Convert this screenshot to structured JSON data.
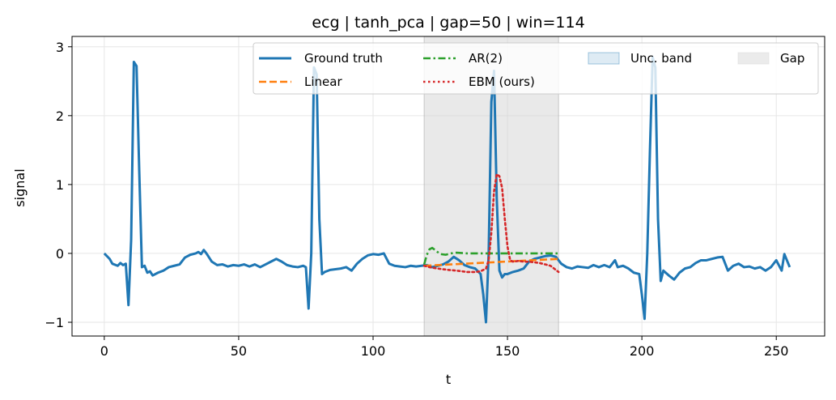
{
  "chart_data": {
    "type": "line",
    "title": "ecg | tanh_pca | gap=50 | win=114",
    "xlabel": "t",
    "ylabel": "signal",
    "xlim": [
      -12,
      268
    ],
    "ylim": [
      -1.2,
      3.15
    ],
    "xticks": [
      0,
      50,
      100,
      150,
      200,
      250
    ],
    "yticks": [
      -1,
      0,
      1,
      2,
      3
    ],
    "grid": true,
    "legend_placement": "top-right",
    "gap_region": {
      "start": 119,
      "end": 169,
      "color": "#d3d3d3",
      "label": "Gap"
    },
    "uncertainty_band": {
      "label": "Unc. band",
      "color": "#1f77b4"
    },
    "series": [
      {
        "name": "Ground truth",
        "color": "#1f77b4",
        "style": "solid",
        "points": [
          [
            0,
            0
          ],
          [
            2,
            -0.08
          ],
          [
            3,
            -0.15
          ],
          [
            5,
            -0.18
          ],
          [
            6,
            -0.14
          ],
          [
            7,
            -0.17
          ],
          [
            8,
            -0.15
          ],
          [
            9,
            -0.75
          ],
          [
            10,
            0.2
          ],
          [
            11,
            2.78
          ],
          [
            12,
            2.72
          ],
          [
            13,
            1.2
          ],
          [
            14,
            -0.2
          ],
          [
            15,
            -0.18
          ],
          [
            16,
            -0.28
          ],
          [
            17,
            -0.26
          ],
          [
            18,
            -0.32
          ],
          [
            20,
            -0.28
          ],
          [
            22,
            -0.25
          ],
          [
            24,
            -0.2
          ],
          [
            26,
            -0.18
          ],
          [
            28,
            -0.16
          ],
          [
            30,
            -0.06
          ],
          [
            32,
            -0.02
          ],
          [
            34,
            0.0
          ],
          [
            35,
            0.02
          ],
          [
            36,
            -0.01
          ],
          [
            37,
            0.05
          ],
          [
            38,
            0.0
          ],
          [
            40,
            -0.12
          ],
          [
            42,
            -0.17
          ],
          [
            44,
            -0.16
          ],
          [
            46,
            -0.19
          ],
          [
            48,
            -0.17
          ],
          [
            50,
            -0.18
          ],
          [
            52,
            -0.16
          ],
          [
            54,
            -0.19
          ],
          [
            56,
            -0.16
          ],
          [
            58,
            -0.2
          ],
          [
            60,
            -0.16
          ],
          [
            62,
            -0.12
          ],
          [
            64,
            -0.08
          ],
          [
            66,
            -0.12
          ],
          [
            68,
            -0.17
          ],
          [
            70,
            -0.19
          ],
          [
            72,
            -0.2
          ],
          [
            74,
            -0.18
          ],
          [
            75,
            -0.2
          ],
          [
            76,
            -0.8
          ],
          [
            77,
            0.0
          ],
          [
            78,
            2.7
          ],
          [
            79,
            2.6
          ],
          [
            80,
            0.5
          ],
          [
            81,
            -0.3
          ],
          [
            82,
            -0.27
          ],
          [
            84,
            -0.24
          ],
          [
            86,
            -0.23
          ],
          [
            88,
            -0.22
          ],
          [
            90,
            -0.2
          ],
          [
            92,
            -0.25
          ],
          [
            94,
            -0.15
          ],
          [
            96,
            -0.08
          ],
          [
            98,
            -0.03
          ],
          [
            100,
            -0.01
          ],
          [
            102,
            -0.02
          ],
          [
            104,
            0.0
          ],
          [
            106,
            -0.15
          ],
          [
            108,
            -0.18
          ],
          [
            110,
            -0.19
          ],
          [
            112,
            -0.2
          ],
          [
            114,
            -0.18
          ],
          [
            116,
            -0.19
          ],
          [
            118,
            -0.18
          ],
          [
            120,
            -0.17
          ],
          [
            122,
            -0.2
          ],
          [
            124,
            -0.18
          ],
          [
            126,
            -0.16
          ],
          [
            128,
            -0.12
          ],
          [
            130,
            -0.05
          ],
          [
            132,
            -0.1
          ],
          [
            134,
            -0.17
          ],
          [
            136,
            -0.2
          ],
          [
            138,
            -0.22
          ],
          [
            140,
            -0.3
          ],
          [
            141,
            -0.6
          ],
          [
            142,
            -1.0
          ],
          [
            143,
            0.0
          ],
          [
            144,
            2.2
          ],
          [
            145,
            2.65
          ],
          [
            146,
            0.8
          ],
          [
            147,
            -0.25
          ],
          [
            148,
            -0.35
          ],
          [
            149,
            -0.3
          ],
          [
            150,
            -0.3
          ],
          [
            152,
            -0.27
          ],
          [
            154,
            -0.25
          ],
          [
            156,
            -0.22
          ],
          [
            158,
            -0.12
          ],
          [
            160,
            -0.08
          ],
          [
            162,
            -0.06
          ],
          [
            164,
            -0.04
          ],
          [
            166,
            -0.03
          ],
          [
            168,
            -0.05
          ],
          [
            170,
            -0.15
          ],
          [
            172,
            -0.2
          ],
          [
            174,
            -0.22
          ],
          [
            176,
            -0.19
          ],
          [
            178,
            -0.2
          ],
          [
            180,
            -0.21
          ],
          [
            182,
            -0.17
          ],
          [
            184,
            -0.2
          ],
          [
            186,
            -0.17
          ],
          [
            188,
            -0.2
          ],
          [
            190,
            -0.1
          ],
          [
            191,
            -0.2
          ],
          [
            193,
            -0.18
          ],
          [
            195,
            -0.22
          ],
          [
            197,
            -0.28
          ],
          [
            199,
            -0.3
          ],
          [
            200,
            -0.6
          ],
          [
            201,
            -0.95
          ],
          [
            202,
            0.0
          ],
          [
            203,
            1.5
          ],
          [
            204,
            2.85
          ],
          [
            205,
            2.7
          ],
          [
            206,
            0.5
          ],
          [
            207,
            -0.4
          ],
          [
            208,
            -0.25
          ],
          [
            210,
            -0.32
          ],
          [
            212,
            -0.38
          ],
          [
            214,
            -0.28
          ],
          [
            216,
            -0.22
          ],
          [
            218,
            -0.2
          ],
          [
            220,
            -0.14
          ],
          [
            222,
            -0.1
          ],
          [
            224,
            -0.1
          ],
          [
            226,
            -0.08
          ],
          [
            228,
            -0.06
          ],
          [
            230,
            -0.05
          ],
          [
            232,
            -0.25
          ],
          [
            234,
            -0.18
          ],
          [
            236,
            -0.15
          ],
          [
            238,
            -0.2
          ],
          [
            240,
            -0.19
          ],
          [
            242,
            -0.22
          ],
          [
            244,
            -0.2
          ],
          [
            246,
            -0.25
          ],
          [
            248,
            -0.2
          ],
          [
            250,
            -0.1
          ],
          [
            252,
            -0.25
          ],
          [
            253,
            -0.01
          ],
          [
            255,
            -0.2
          ]
        ]
      },
      {
        "name": "Linear",
        "color": "#ff7f0e",
        "style": "dashed",
        "points": [
          [
            119,
            -0.18
          ],
          [
            169,
            -0.08
          ]
        ]
      },
      {
        "name": "AR(2)",
        "color": "#2ca02c",
        "style": "dashdot",
        "points": [
          [
            119,
            -0.16
          ],
          [
            120,
            -0.02
          ],
          [
            121,
            0.06
          ],
          [
            122,
            0.08
          ],
          [
            123,
            0.05
          ],
          [
            124,
            0.02
          ],
          [
            125,
            -0.01
          ],
          [
            127,
            -0.02
          ],
          [
            129,
            0.0
          ],
          [
            131,
            0.01
          ],
          [
            135,
            0.0
          ],
          [
            140,
            0.0
          ],
          [
            150,
            0.0
          ],
          [
            160,
            0.0
          ],
          [
            169,
            0.0
          ]
        ]
      },
      {
        "name": "EBM (ours)",
        "color": "#d62728",
        "style": "dotted",
        "points": [
          [
            119,
            -0.18
          ],
          [
            121,
            -0.2
          ],
          [
            124,
            -0.22
          ],
          [
            128,
            -0.24
          ],
          [
            131,
            -0.25
          ],
          [
            135,
            -0.27
          ],
          [
            138,
            -0.27
          ],
          [
            140,
            -0.26
          ],
          [
            142,
            -0.22
          ],
          [
            143,
            -0.1
          ],
          [
            144,
            0.3
          ],
          [
            145,
            0.9
          ],
          [
            146,
            1.15
          ],
          [
            147,
            1.12
          ],
          [
            148,
            0.95
          ],
          [
            149,
            0.5
          ],
          [
            150,
            0.1
          ],
          [
            151,
            -0.1
          ],
          [
            152,
            -0.12
          ],
          [
            154,
            -0.11
          ],
          [
            156,
            -0.12
          ],
          [
            158,
            -0.12
          ],
          [
            160,
            -0.13
          ],
          [
            162,
            -0.14
          ],
          [
            164,
            -0.16
          ],
          [
            166,
            -0.18
          ],
          [
            169,
            -0.27
          ]
        ]
      }
    ]
  }
}
